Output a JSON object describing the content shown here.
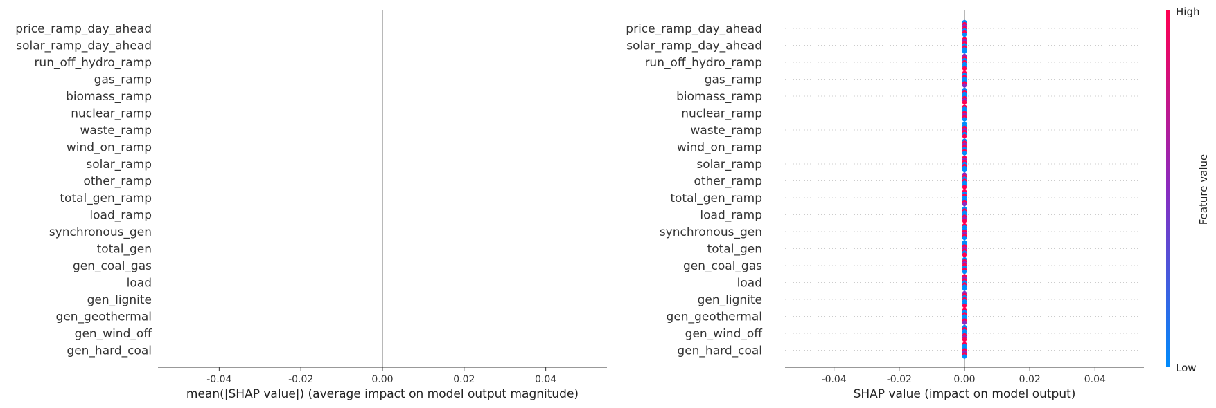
{
  "chart_data": [
    {
      "type": "bar",
      "title": "",
      "xlabel": "mean(|SHAP value|) (average impact on model output magnitude)",
      "ylabel": "",
      "xlim": [
        -0.055,
        0.055
      ],
      "xticks": [
        "-0.04",
        "-0.02",
        "0.00",
        "0.02",
        "0.04"
      ],
      "xtick_values": [
        -0.04,
        -0.02,
        0.0,
        0.02,
        0.04
      ],
      "categories": [
        "price_ramp_day_ahead",
        "solar_ramp_day_ahead",
        "run_off_hydro_ramp",
        "gas_ramp",
        "biomass_ramp",
        "nuclear_ramp",
        "waste_ramp",
        "wind_on_ramp",
        "solar_ramp",
        "other_ramp",
        "total_gen_ramp",
        "load_ramp",
        "synchronous_gen",
        "total_gen",
        "gen_coal_gas",
        "load",
        "gen_lignite",
        "gen_geothermal",
        "gen_wind_off",
        "gen_hard_coal"
      ],
      "values": [
        0,
        0,
        0,
        0,
        0,
        0,
        0,
        0,
        0,
        0,
        0,
        0,
        0,
        0,
        0,
        0,
        0,
        0,
        0,
        0
      ],
      "grid": false,
      "legend": "none"
    },
    {
      "type": "scatter",
      "title": "",
      "xlabel": "SHAP value (impact on model output)",
      "ylabel": "",
      "xlim": [
        -0.055,
        0.055
      ],
      "xticks": [
        "-0.04",
        "-0.02",
        "0.00",
        "0.02",
        "0.04"
      ],
      "xtick_values": [
        -0.04,
        -0.02,
        0.0,
        0.02,
        0.04
      ],
      "categories": [
        "price_ramp_day_ahead",
        "solar_ramp_day_ahead",
        "run_off_hydro_ramp",
        "gas_ramp",
        "biomass_ramp",
        "nuclear_ramp",
        "waste_ramp",
        "wind_on_ramp",
        "solar_ramp",
        "other_ramp",
        "total_gen_ramp",
        "load_ramp",
        "synchronous_gen",
        "total_gen",
        "gen_coal_gas",
        "load",
        "gen_lignite",
        "gen_geothermal",
        "gen_wind_off",
        "gen_hard_coal"
      ],
      "shap_values": [
        0,
        0,
        0,
        0,
        0,
        0,
        0,
        0,
        0,
        0,
        0,
        0,
        0,
        0,
        0,
        0,
        0,
        0,
        0,
        0
      ],
      "colorbar": {
        "label": "Feature value",
        "high_label": "High",
        "low_label": "Low",
        "high_color": "#ff0051",
        "mid_color": "#8a2bbf",
        "low_color": "#008bfb"
      },
      "grid": "dotted horizontal guides",
      "legend": "colorbar right"
    }
  ]
}
